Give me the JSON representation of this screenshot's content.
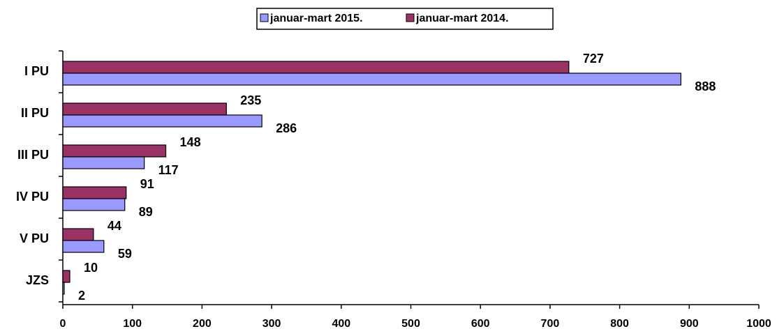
{
  "chart_data": {
    "type": "bar",
    "orientation": "horizontal",
    "categories": [
      "I PU",
      "II PU",
      "III PU",
      "IV PU",
      "V PU",
      "JZS"
    ],
    "series": [
      {
        "name": "januar-mart 2015.",
        "color": "#9999ff",
        "values": [
          888,
          286,
          117,
          89,
          59,
          2
        ]
      },
      {
        "name": "januar-mart 2014.",
        "color": "#993366",
        "values": [
          727,
          235,
          148,
          91,
          44,
          10
        ]
      }
    ],
    "xlim": [
      0,
      1000
    ],
    "xticks": [
      0,
      100,
      200,
      300,
      400,
      500,
      600,
      700,
      800,
      900,
      1000
    ],
    "legend": "top",
    "grid": false
  }
}
